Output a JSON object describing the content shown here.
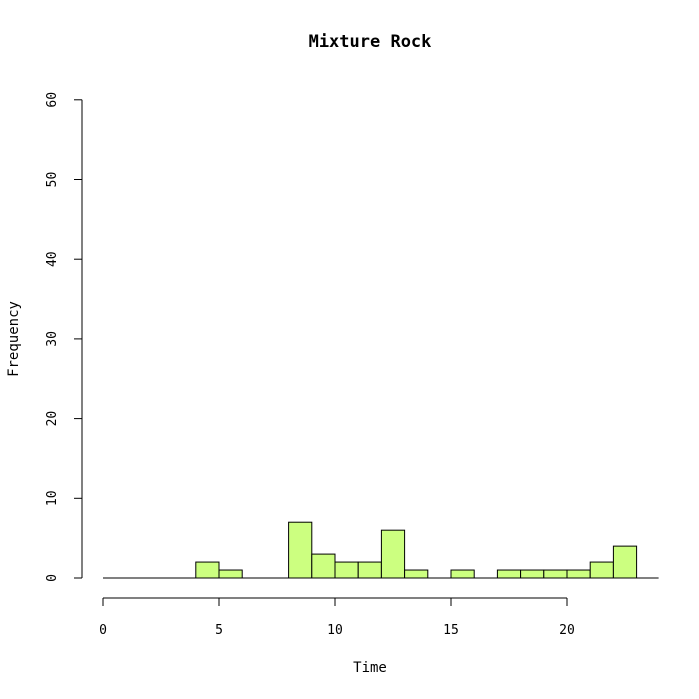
{
  "chart_data": {
    "type": "bar",
    "title": "Mixture Rock",
    "xlabel": "Time",
    "ylabel": "Frequency",
    "xlim": [
      0,
      24
    ],
    "ylim": [
      0,
      60
    ],
    "xticks": [
      0,
      5,
      10,
      15,
      20
    ],
    "yticks": [
      0,
      10,
      20,
      30,
      40,
      50,
      60
    ],
    "bar_color": "#ccff80",
    "bins": [
      {
        "start": 0,
        "end": 1,
        "count": 0
      },
      {
        "start": 1,
        "end": 2,
        "count": 0
      },
      {
        "start": 2,
        "end": 3,
        "count": 0
      },
      {
        "start": 3,
        "end": 4,
        "count": 0
      },
      {
        "start": 4,
        "end": 5,
        "count": 2
      },
      {
        "start": 5,
        "end": 6,
        "count": 1
      },
      {
        "start": 6,
        "end": 7,
        "count": 0
      },
      {
        "start": 7,
        "end": 8,
        "count": 0
      },
      {
        "start": 8,
        "end": 9,
        "count": 7
      },
      {
        "start": 9,
        "end": 10,
        "count": 3
      },
      {
        "start": 10,
        "end": 11,
        "count": 2
      },
      {
        "start": 11,
        "end": 12,
        "count": 2
      },
      {
        "start": 12,
        "end": 13,
        "count": 6
      },
      {
        "start": 13,
        "end": 14,
        "count": 1
      },
      {
        "start": 14,
        "end": 15,
        "count": 0
      },
      {
        "start": 15,
        "end": 16,
        "count": 1
      },
      {
        "start": 16,
        "end": 17,
        "count": 0
      },
      {
        "start": 17,
        "end": 18,
        "count": 1
      },
      {
        "start": 18,
        "end": 19,
        "count": 1
      },
      {
        "start": 19,
        "end": 20,
        "count": 1
      },
      {
        "start": 20,
        "end": 21,
        "count": 1
      },
      {
        "start": 21,
        "end": 22,
        "count": 2
      },
      {
        "start": 22,
        "end": 23,
        "count": 4
      }
    ]
  }
}
